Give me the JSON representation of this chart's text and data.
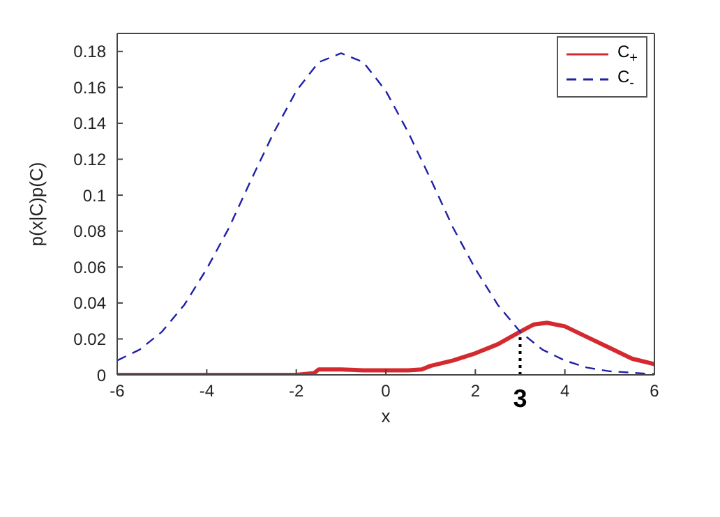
{
  "chart_data": {
    "type": "line",
    "xlabel": "x",
    "ylabel": "p(x|C)p(C)",
    "xlim": [
      -6,
      6
    ],
    "xticks": [
      -6,
      -4,
      -2,
      0,
      2,
      4,
      6
    ],
    "ylim": [
      0,
      0.19
    ],
    "yticks": [
      0,
      0.02,
      0.04,
      0.06,
      0.08,
      0.1,
      0.12,
      0.14,
      0.16,
      0.18
    ],
    "legend": "top right",
    "series": [
      {
        "name": "C$_{+}$",
        "color": "#d42a2f",
        "line_style": "solid",
        "x": [
          -6,
          -2,
          -1.6,
          -1.5,
          -1,
          -0.5,
          0,
          0.5,
          0.8,
          1,
          1.5,
          2,
          2.5,
          3,
          3.3,
          3.6,
          4,
          4.5,
          5,
          5.5,
          6
        ],
        "values": [
          0,
          0,
          0.001,
          0.003,
          0.003,
          0.0025,
          0.0025,
          0.0025,
          0.003,
          0.005,
          0.008,
          0.012,
          0.017,
          0.024,
          0.028,
          0.029,
          0.027,
          0.021,
          0.015,
          0.009,
          0.006
        ]
      },
      {
        "name": "C$_{-}$",
        "color": "#1f1fa8",
        "line_style": "dashed",
        "x": [
          -6,
          -5.5,
          -5,
          -4.5,
          -4,
          -3.5,
          -3,
          -2.5,
          -2,
          -1.5,
          -1,
          -0.5,
          0,
          0.5,
          1,
          1.5,
          2,
          2.5,
          3,
          3.5,
          4,
          4.5,
          5,
          6
        ],
        "values": [
          0.008,
          0.014,
          0.024,
          0.039,
          0.059,
          0.082,
          0.109,
          0.135,
          0.158,
          0.174,
          0.179,
          0.174,
          0.158,
          0.135,
          0.109,
          0.082,
          0.059,
          0.039,
          0.024,
          0.014,
          0.008,
          0.004,
          0.002,
          0.0004
        ]
      },
      {
        "color": "#000000",
        "line_style": "dotted",
        "x": [
          3,
          3
        ],
        "values": [
          0,
          0.022
        ]
      }
    ],
    "annotations": [
      {
        "text": "3",
        "x": 3,
        "y": 0
      }
    ]
  }
}
